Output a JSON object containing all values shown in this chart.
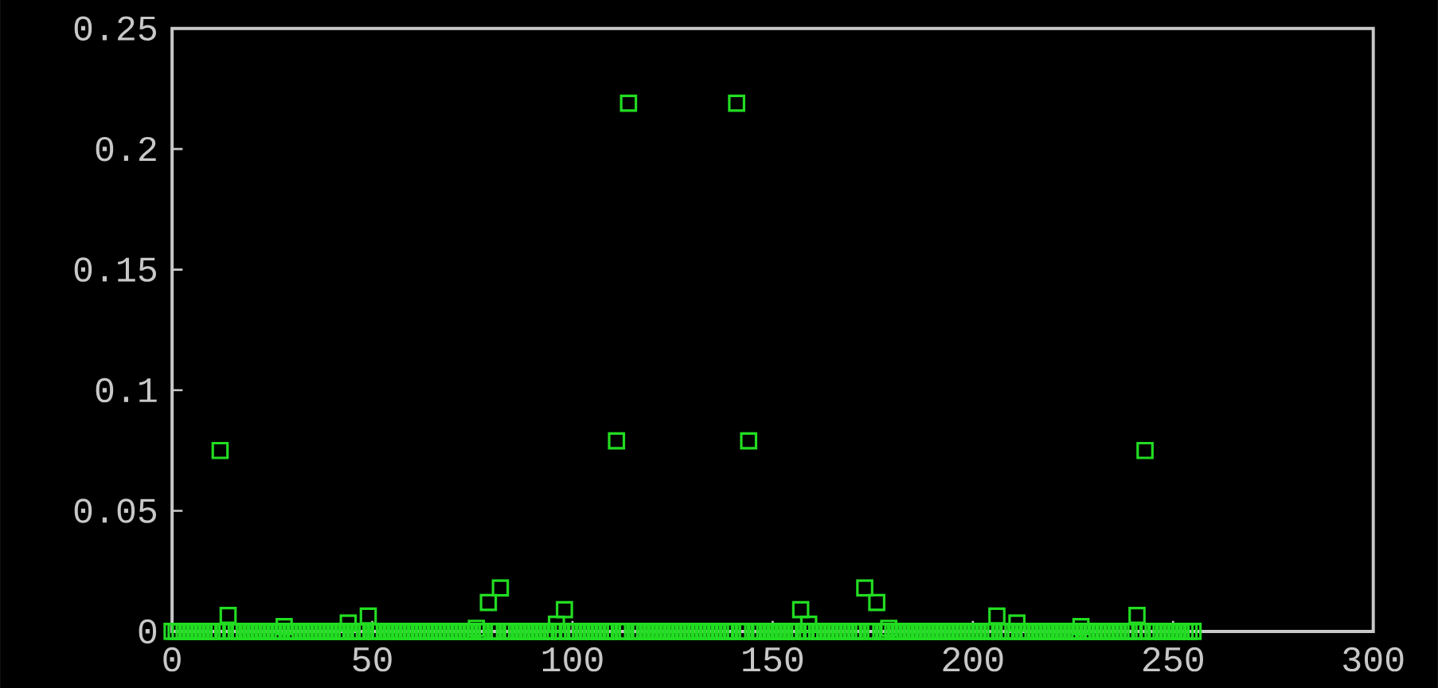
{
  "chart_data": {
    "type": "scatter",
    "marker": "square",
    "color": "#22dd22",
    "xlim": [
      0,
      300
    ],
    "ylim": [
      0,
      0.25
    ],
    "xticks": [
      0,
      50,
      100,
      150,
      200,
      250,
      300
    ],
    "yticks": [
      0,
      0.05,
      0.1,
      0.15,
      0.2,
      0.25
    ],
    "x": [
      0,
      1,
      2,
      3,
      4,
      5,
      6,
      7,
      8,
      9,
      10,
      11,
      12,
      13,
      14,
      15,
      16,
      17,
      18,
      19,
      20,
      21,
      22,
      23,
      24,
      25,
      26,
      27,
      28,
      29,
      30,
      31,
      32,
      33,
      34,
      35,
      36,
      37,
      38,
      39,
      40,
      41,
      42,
      43,
      44,
      45,
      46,
      47,
      48,
      49,
      50,
      51,
      52,
      53,
      54,
      55,
      56,
      57,
      58,
      59,
      60,
      61,
      62,
      63,
      64,
      65,
      66,
      67,
      68,
      69,
      70,
      71,
      72,
      73,
      74,
      75,
      76,
      77,
      78,
      79,
      80,
      81,
      82,
      83,
      84,
      85,
      86,
      87,
      88,
      89,
      90,
      91,
      92,
      93,
      94,
      95,
      96,
      97,
      98,
      99,
      100,
      101,
      102,
      103,
      104,
      105,
      106,
      107,
      108,
      109,
      110,
      111,
      112,
      113,
      114,
      115,
      116,
      117,
      118,
      119,
      120,
      121,
      122,
      123,
      124,
      125,
      126,
      127,
      128,
      129,
      130,
      131,
      132,
      133,
      134,
      135,
      136,
      137,
      138,
      139,
      140,
      141,
      142,
      143,
      144,
      145,
      146,
      147,
      148,
      149,
      150,
      151,
      152,
      153,
      154,
      155,
      156,
      157,
      158,
      159,
      160,
      161,
      162,
      163,
      164,
      165,
      166,
      167,
      168,
      169,
      170,
      171,
      172,
      173,
      174,
      175,
      176,
      177,
      178,
      179,
      180,
      181,
      182,
      183,
      184,
      185,
      186,
      187,
      188,
      189,
      190,
      191,
      192,
      193,
      194,
      195,
      196,
      197,
      198,
      199,
      200,
      201,
      202,
      203,
      204,
      205,
      206,
      207,
      208,
      209,
      210,
      211,
      212,
      213,
      214,
      215,
      216,
      217,
      218,
      219,
      220,
      221,
      222,
      223,
      224,
      225,
      226,
      227,
      228,
      229,
      230,
      231,
      232,
      233,
      234,
      235,
      236,
      237,
      238,
      239,
      240,
      241,
      242,
      243,
      244,
      245,
      246,
      247,
      248,
      249,
      250,
      251,
      252,
      253,
      254,
      255
    ],
    "values": [
      0,
      0,
      0,
      0,
      0,
      0,
      0,
      0,
      0,
      0,
      0,
      0,
      0.075,
      0,
      0.0066,
      0,
      0,
      0,
      0,
      0,
      0,
      0,
      0,
      0,
      0,
      0,
      0,
      0,
      0.002,
      0,
      0,
      0,
      0,
      0,
      0,
      0,
      0,
      0,
      0,
      0,
      0,
      0,
      0,
      0,
      0.0035,
      0,
      0,
      0,
      0,
      0.0064,
      0,
      0,
      0,
      0,
      0,
      0,
      0,
      0,
      0,
      0,
      0,
      0,
      0,
      0,
      0,
      0,
      0,
      0,
      0,
      0,
      0,
      0,
      0,
      0,
      0,
      0,
      0.0013,
      0,
      0,
      0.012,
      0,
      0,
      0.018,
      0,
      0,
      0,
      0,
      0,
      0,
      0,
      0,
      0,
      0,
      0,
      0,
      0,
      0.003,
      0,
      0.009,
      0,
      0,
      0,
      0,
      0,
      0,
      0,
      0,
      0,
      0,
      0,
      0,
      0.079,
      0,
      0,
      0.219,
      0,
      0,
      0,
      0,
      0,
      0,
      0,
      0,
      0,
      0,
      0,
      0,
      0,
      0,
      0,
      0,
      0,
      0,
      0,
      0,
      0,
      0,
      0,
      0,
      0,
      0,
      0.219,
      0,
      0,
      0.079,
      0,
      0,
      0,
      0,
      0,
      0,
      0,
      0,
      0,
      0,
      0,
      0,
      0.009,
      0,
      0.003,
      0,
      0,
      0,
      0,
      0,
      0,
      0,
      0,
      0,
      0,
      0,
      0,
      0,
      0.018,
      0,
      0,
      0.012,
      0,
      0,
      0.0013,
      0,
      0,
      0,
      0,
      0,
      0,
      0,
      0,
      0,
      0,
      0,
      0,
      0,
      0,
      0,
      0,
      0,
      0,
      0,
      0,
      0,
      0,
      0,
      0,
      0,
      0,
      0.0064,
      0,
      0,
      0,
      0,
      0.0035,
      0,
      0,
      0,
      0,
      0,
      0,
      0,
      0,
      0,
      0,
      0,
      0,
      0,
      0,
      0,
      0.002,
      0,
      0,
      0,
      0,
      0,
      0,
      0,
      0,
      0,
      0,
      0,
      0,
      0,
      0.0066,
      0,
      0.075,
      0,
      0,
      0,
      0,
      0,
      0,
      0,
      0,
      0,
      0,
      0,
      0
    ]
  }
}
